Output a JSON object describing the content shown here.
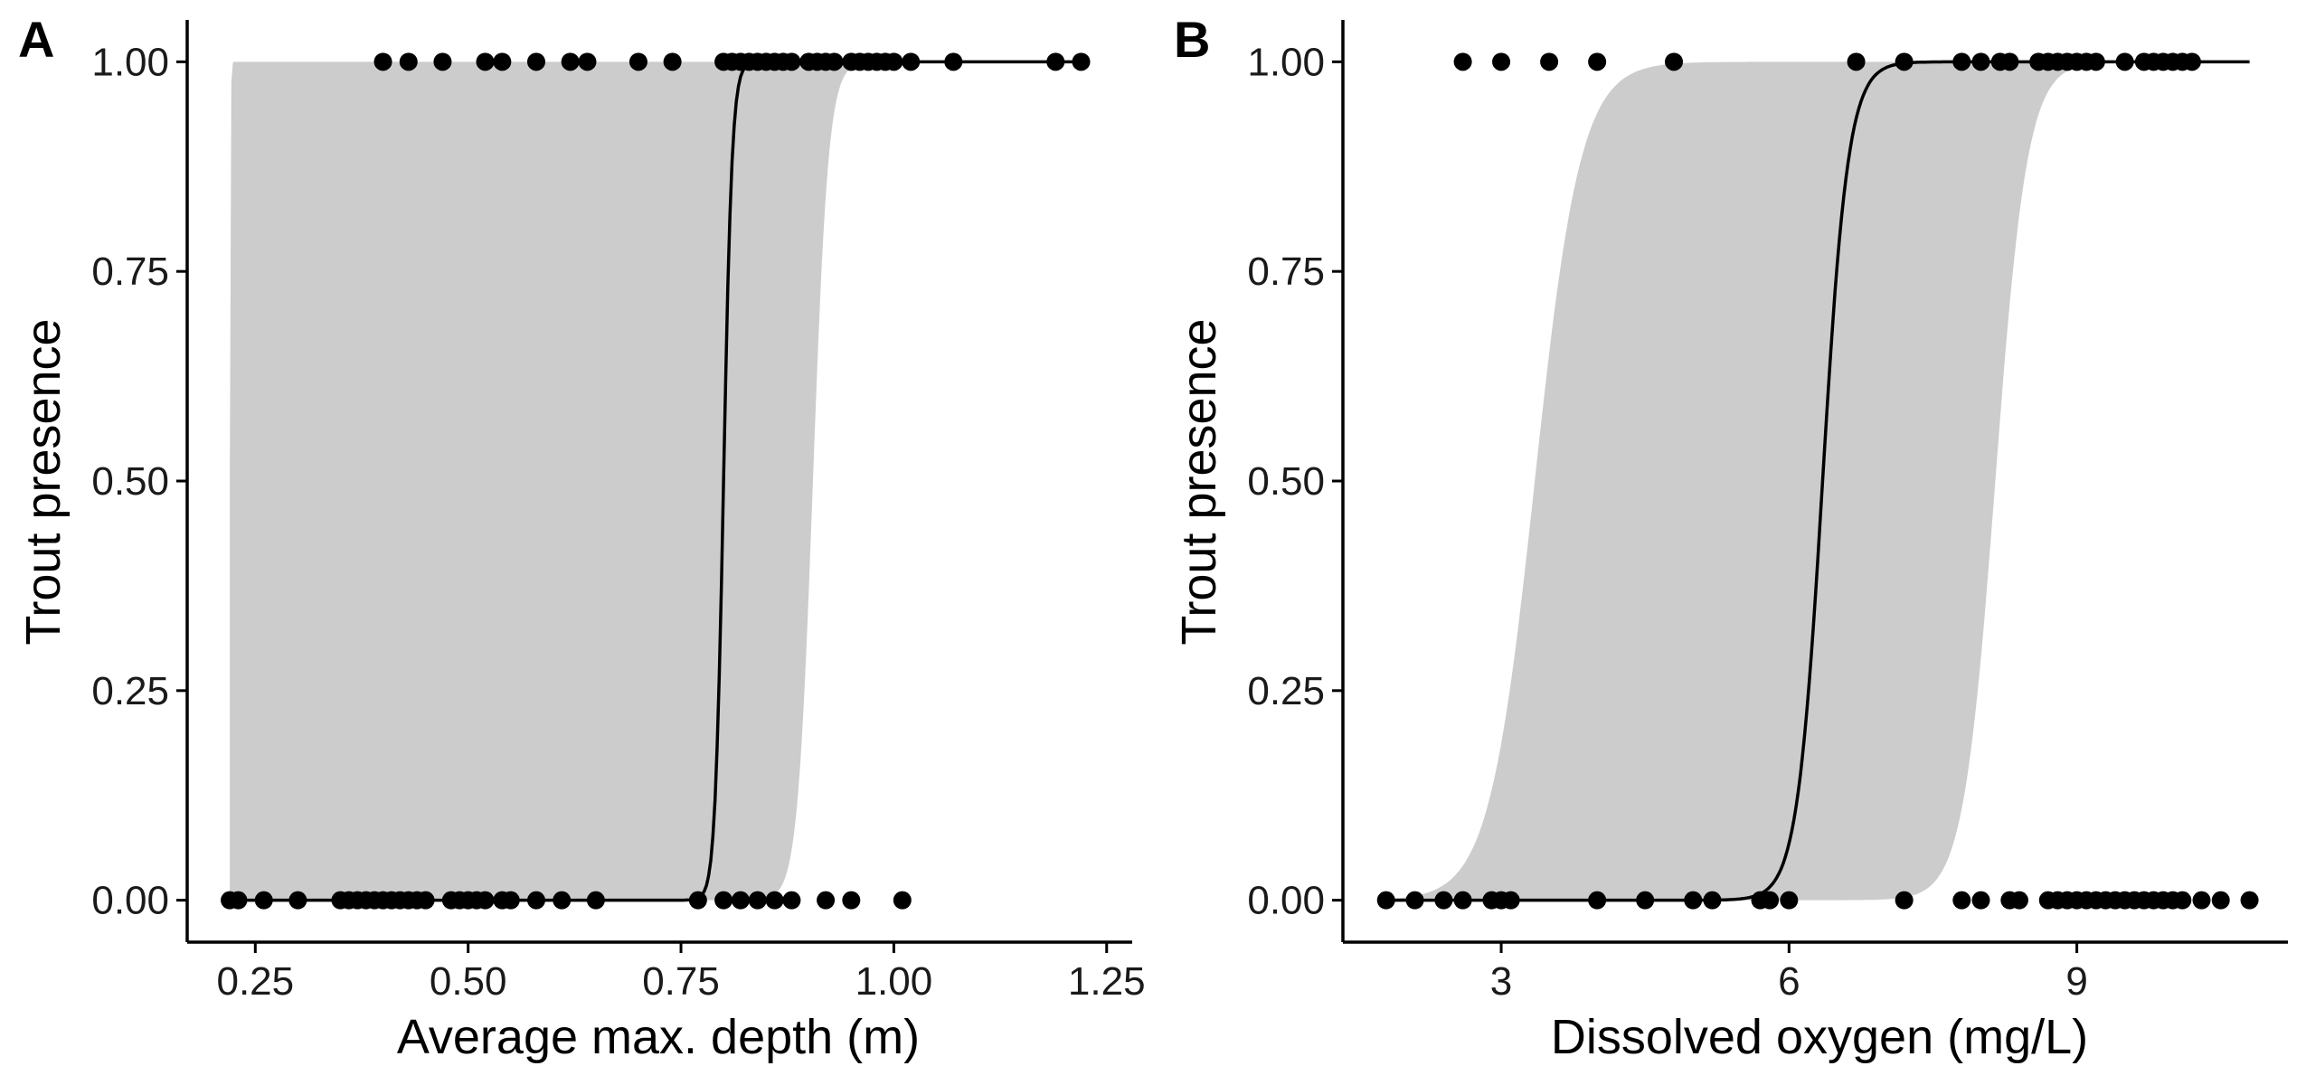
{
  "colors": {
    "band": "#cccccc",
    "line": "#000000",
    "point": "#000000",
    "axis": "#000000"
  },
  "chart_data": [
    {
      "type": "scatter",
      "panel_tag": "A",
      "xlabel": "Average max. depth (m)",
      "ylabel": "Trout presence",
      "xlim": [
        0.17,
        1.28
      ],
      "ylim": [
        -0.05,
        1.05
      ],
      "x_ticks": [
        0.25,
        0.5,
        0.75,
        1.0,
        1.25
      ],
      "x_tick_labels": [
        "0.25",
        "0.50",
        "0.75",
        "1.00",
        "1.25"
      ],
      "y_ticks": [
        0,
        0.25,
        0.5,
        0.75,
        1.0
      ],
      "y_tick_labels": [
        "0.00",
        "0.25",
        "0.50",
        "0.75",
        "1.00"
      ],
      "grid": false,
      "fit": {
        "midpoint": 0.8,
        "slope": 200,
        "x_range": [
          0.22,
          1.22
        ]
      },
      "ci_band": {
        "lower": {
          "midpoint": 0.905,
          "slope": 110
        },
        "upper": {
          "midpoint": 0.22,
          "slope": 2000
        },
        "x_range": [
          0.22,
          0.96
        ]
      },
      "points_presence_1": [
        0.4,
        0.43,
        0.47,
        0.52,
        0.54,
        0.58,
        0.62,
        0.64,
        0.7,
        0.74,
        0.8,
        0.81,
        0.82,
        0.83,
        0.84,
        0.85,
        0.86,
        0.87,
        0.88,
        0.9,
        0.91,
        0.92,
        0.93,
        0.95,
        0.96,
        0.97,
        0.98,
        0.99,
        1.0,
        1.02,
        1.07,
        1.19,
        1.22
      ],
      "points_presence_0": [
        0.22,
        0.23,
        0.26,
        0.3,
        0.35,
        0.36,
        0.37,
        0.38,
        0.39,
        0.4,
        0.41,
        0.42,
        0.43,
        0.44,
        0.45,
        0.48,
        0.49,
        0.5,
        0.51,
        0.52,
        0.54,
        0.55,
        0.58,
        0.61,
        0.65,
        0.77,
        0.8,
        0.82,
        0.84,
        0.86,
        0.88,
        0.92,
        0.95,
        1.01
      ]
    },
    {
      "type": "scatter",
      "panel_tag": "B",
      "xlabel": "Dissolved oxygen (mg/L)",
      "ylabel": "Trout presence",
      "xlim": [
        1.35,
        11.2
      ],
      "ylim": [
        -0.05,
        1.05
      ],
      "x_ticks": [
        3,
        6,
        9
      ],
      "x_tick_labels": [
        "3",
        "6",
        "9"
      ],
      "y_ticks": [
        0,
        0.25,
        0.5,
        0.75,
        1.0
      ],
      "y_tick_labels": [
        "0.00",
        "0.25",
        "0.50",
        "0.75",
        "1.00"
      ],
      "grid": false,
      "fit": {
        "midpoint": 6.35,
        "slope": 7.5,
        "x_range": [
          1.8,
          10.8
        ]
      },
      "ci_band": {
        "lower": {
          "midpoint": 8.15,
          "slope": 6
        },
        "upper": {
          "midpoint": 3.35,
          "slope": 4.2
        },
        "x_range": [
          1.8,
          10.8
        ]
      },
      "points_presence_1": [
        2.6,
        3.0,
        3.5,
        4.0,
        4.8,
        6.7,
        7.2,
        7.8,
        8.0,
        8.2,
        8.3,
        8.6,
        8.7,
        8.8,
        8.9,
        9.0,
        9.1,
        9.2,
        9.5,
        9.7,
        9.8,
        9.9,
        10.0,
        10.1,
        10.2
      ],
      "points_presence_0": [
        1.8,
        2.1,
        2.4,
        2.6,
        2.9,
        3.0,
        3.1,
        4.0,
        4.5,
        5.0,
        5.2,
        5.7,
        5.8,
        6.0,
        7.2,
        7.8,
        8.0,
        8.3,
        8.4,
        8.7,
        8.8,
        8.9,
        9.0,
        9.1,
        9.2,
        9.3,
        9.4,
        9.5,
        9.6,
        9.7,
        9.8,
        9.9,
        10.0,
        10.1,
        10.3,
        10.5,
        10.8
      ]
    }
  ]
}
